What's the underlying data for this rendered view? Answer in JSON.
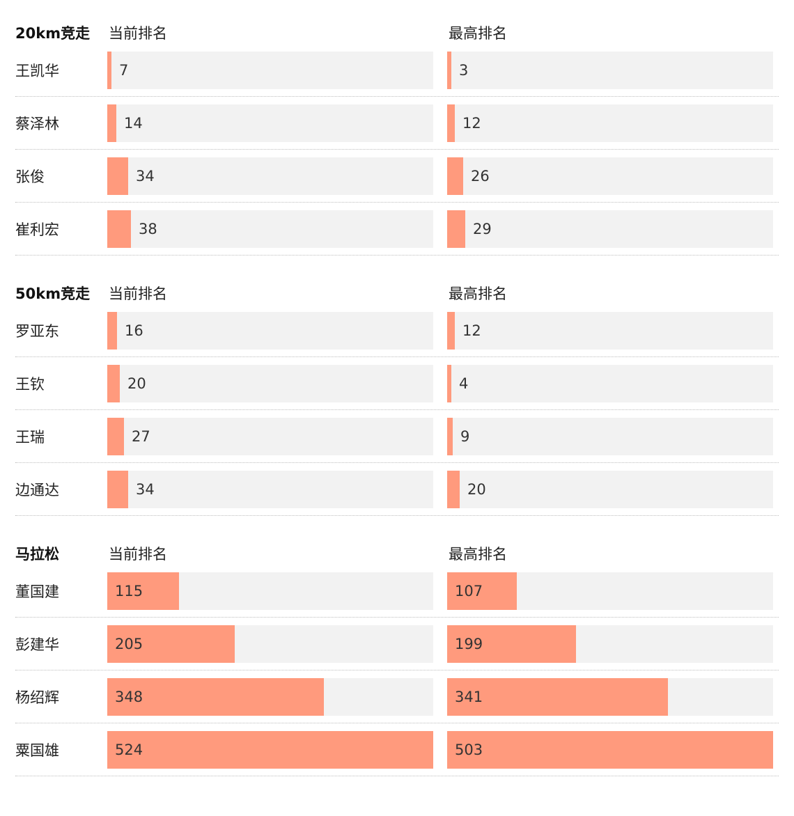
{
  "chart_data": [
    {
      "type": "bar",
      "title": "20km竞走",
      "col_headers": [
        "当前排名",
        "最高排名"
      ],
      "categories": [
        "王凯华",
        "蔡泽林",
        "张俊",
        "崔利宏"
      ],
      "series": [
        {
          "name": "当前排名",
          "values": [
            7,
            14,
            34,
            38
          ]
        },
        {
          "name": "最高排名",
          "values": [
            3,
            12,
            26,
            29
          ]
        }
      ],
      "xlim": [
        0,
        524
      ]
    },
    {
      "type": "bar",
      "title": "50km竞走",
      "col_headers": [
        "当前排名",
        "最高排名"
      ],
      "categories": [
        "罗亚东",
        "王钦",
        "王瑞",
        "边通达"
      ],
      "series": [
        {
          "name": "当前排名",
          "values": [
            16,
            20,
            27,
            34
          ]
        },
        {
          "name": "最高排名",
          "values": [
            12,
            4,
            9,
            20
          ]
        }
      ],
      "xlim": [
        0,
        524
      ]
    },
    {
      "type": "bar",
      "title": "马拉松",
      "col_headers": [
        "当前排名",
        "最高排名"
      ],
      "categories": [
        "董国建",
        "彭建华",
        "杨绍辉",
        "粟国雄"
      ],
      "series": [
        {
          "name": "当前排名",
          "values": [
            115,
            205,
            348,
            524
          ]
        },
        {
          "name": "最高排名",
          "values": [
            107,
            199,
            341,
            503
          ]
        }
      ],
      "xlim": [
        0,
        524
      ],
      "xlim_best": [
        0,
        503
      ]
    }
  ],
  "colors": {
    "bar": "#ff9a7d",
    "track": "#f2f2f2"
  }
}
